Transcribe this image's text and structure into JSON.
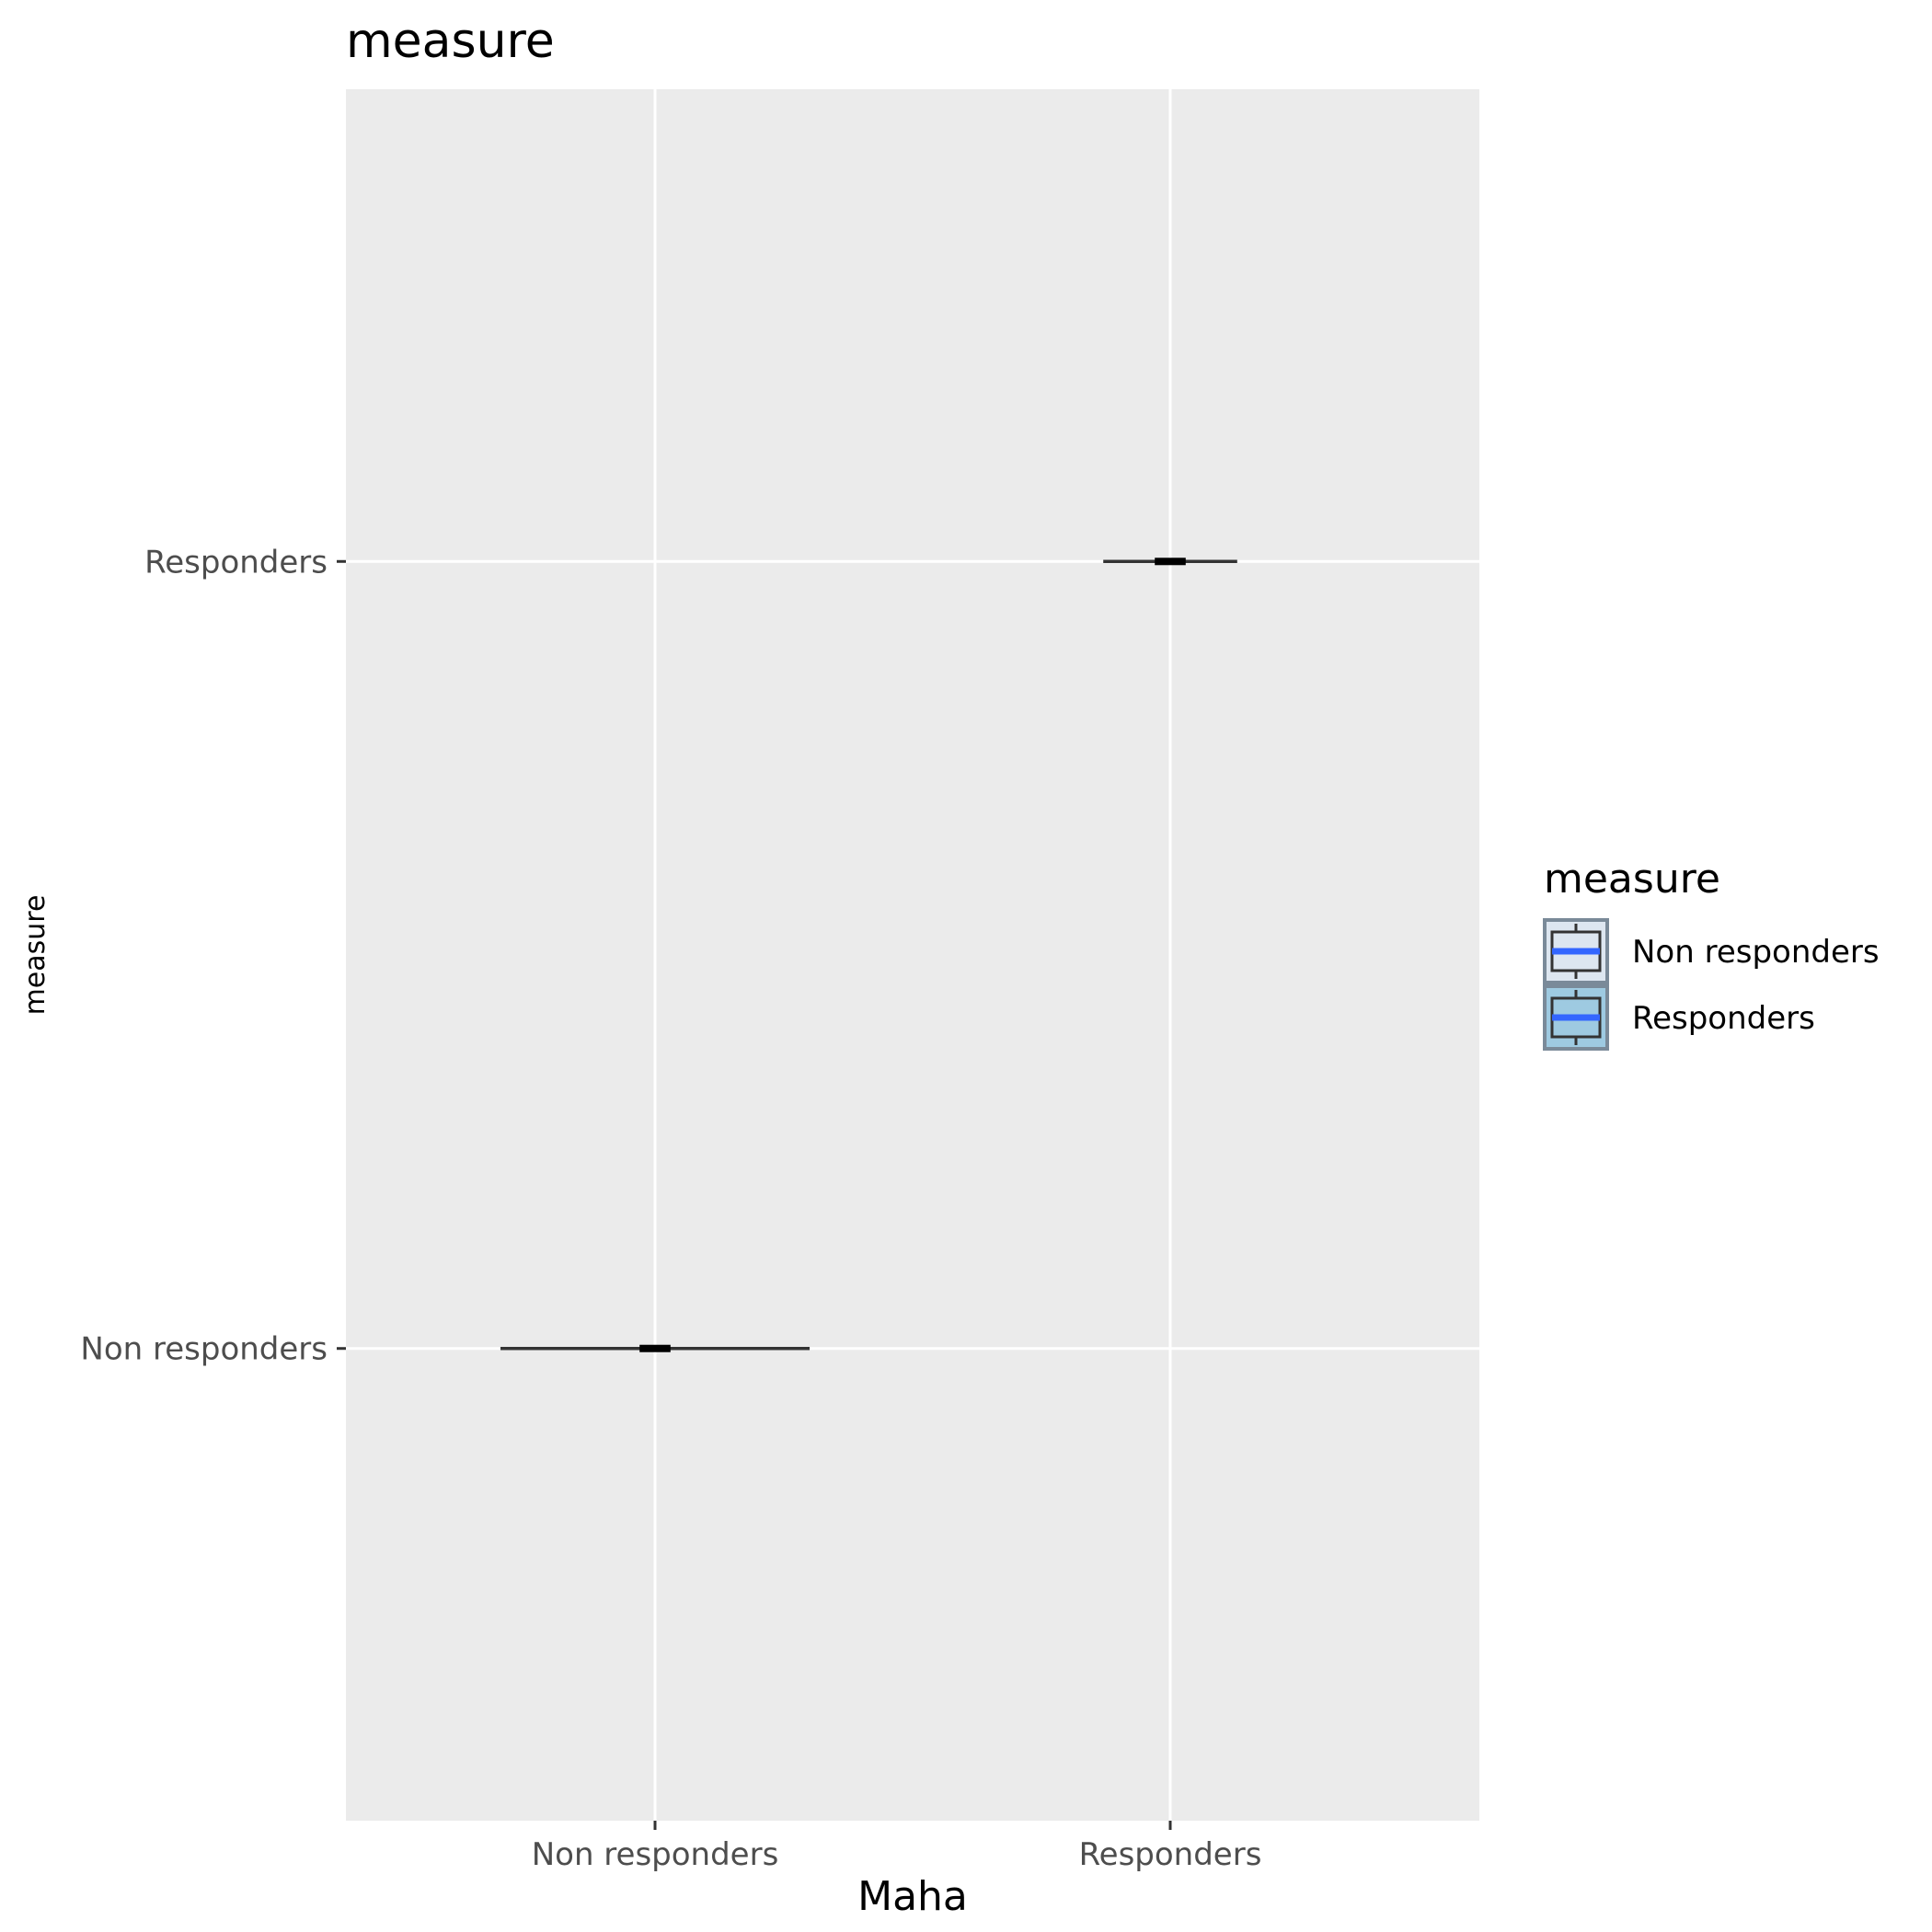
{
  "chart_data": {
    "type": "boxplot",
    "title": "measure",
    "xlabel": "Maha",
    "ylabel": "measure",
    "orientation": "horizontal-boxes",
    "x_categories": [
      "Non responders",
      "Responders"
    ],
    "y_categories": [
      "Non responders",
      "Responders"
    ],
    "grid": true,
    "legend": {
      "title": "measure",
      "position": "right",
      "entries": [
        "Non responders",
        "Responders"
      ]
    },
    "series": [
      {
        "name": "Non responders",
        "x_center_category": "Non responders",
        "y_category": "Non responders",
        "whisker_low": 0.7,
        "q1": 0.97,
        "median": 1.0,
        "q3": 1.03,
        "whisker_high": 1.3,
        "fill": "#e3ecf5",
        "legend_fill": "#dde6f0"
      },
      {
        "name": "Responders",
        "x_center_category": "Responders",
        "y_category": "Responders",
        "whisker_low": 1.87,
        "q1": 1.97,
        "median": 2.0,
        "q3": 2.03,
        "whisker_high": 2.13,
        "fill": "#9ecae1",
        "legend_fill": "#9ecae1"
      }
    ],
    "colors": {
      "panel_background": "#ebebeb",
      "grid": "#ffffff",
      "median_line": "#3366ff",
      "box_outline": "#333333",
      "tick": "#333333"
    }
  }
}
